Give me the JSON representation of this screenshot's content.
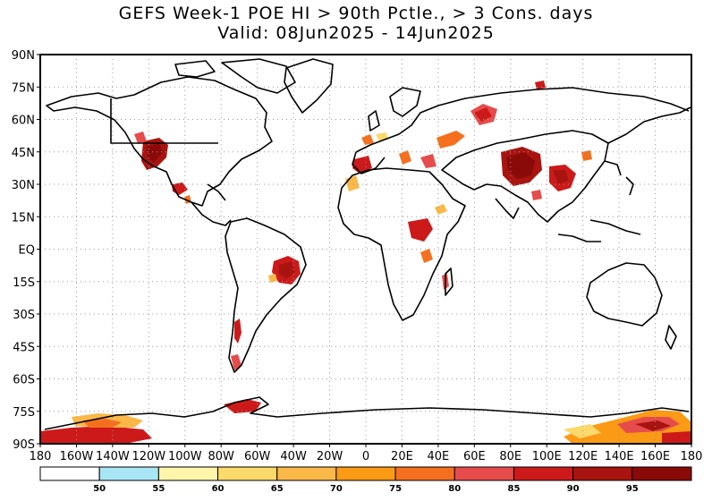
{
  "title": {
    "line1": "GEFS Week-1 POE HI > 90th Pctle., > 3 Cons. days",
    "line2": "Valid: 08Jun2025 - 14Jun2025"
  },
  "lat_labels": [
    "90N",
    "75N",
    "60N",
    "45N",
    "30N",
    "15N",
    "EQ",
    "15S",
    "30S",
    "45S",
    "60S",
    "75S",
    "90S"
  ],
  "lon_labels": [
    "180",
    "160W",
    "140W",
    "120W",
    "100W",
    "80W",
    "60W",
    "40W",
    "20W",
    "0",
    "20E",
    "40E",
    "60E",
    "80E",
    "100E",
    "120E",
    "140E",
    "160E",
    "180"
  ],
  "legend": {
    "labels": [
      "50",
      "55",
      "60",
      "65",
      "70",
      "75",
      "80",
      "85",
      "90",
      "95"
    ],
    "colors": [
      "#ffffff",
      "#a8e6f5",
      "#fff5aa",
      "#fcd96b",
      "#f9b847",
      "#fb9a14",
      "#f4701e",
      "#e64c4c",
      "#cc1a1a",
      "#a8140f",
      "#8a0a0a"
    ]
  },
  "colors": {
    "coast": "#000000",
    "grid": "#999999"
  }
}
